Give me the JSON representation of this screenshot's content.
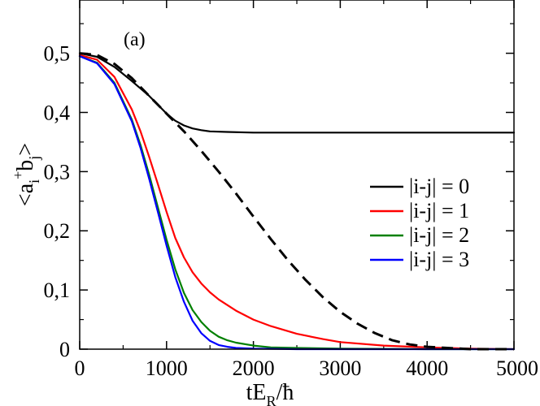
{
  "chart_data": {
    "type": "line",
    "panel_label": "(a)",
    "xlabel": {
      "main": "tE",
      "sub": "R",
      "rest": "/ħ"
    },
    "ylabel": {
      "open": "<a",
      "sub1": "i",
      "sup": "+",
      "mid": "b",
      "sub2": "j",
      "close": ">"
    },
    "xlim": [
      0,
      5000
    ],
    "ylim": [
      0,
      0.59
    ],
    "x_ticks": [
      0,
      1000,
      2000,
      3000,
      4000,
      5000
    ],
    "x_tick_labels": [
      "0",
      "1000",
      "2000",
      "3000",
      "4000",
      "5000"
    ],
    "y_ticks": [
      0,
      0.1,
      0.2,
      0.3,
      0.4,
      0.5
    ],
    "y_tick_labels": [
      "0",
      "0,1",
      "0,2",
      "0,3",
      "0,4",
      "0,5"
    ],
    "x_minor_step": 500,
    "y_minor_step": 0.05,
    "series": [
      {
        "name": "|i-j| = 0",
        "color": "#000000",
        "style": "solid",
        "x": [
          0,
          200,
          400,
          600,
          800,
          900,
          1000,
          1100,
          1200,
          1300,
          1400,
          1500,
          1700,
          2000,
          2500,
          3000,
          4000,
          5000
        ],
        "y": [
          0.5,
          0.494,
          0.477,
          0.453,
          0.428,
          0.413,
          0.398,
          0.386,
          0.378,
          0.373,
          0.37,
          0.368,
          0.367,
          0.366,
          0.366,
          0.366,
          0.366,
          0.366
        ]
      },
      {
        "name": "|i-j| = 1",
        "color": "#ff0000",
        "style": "solid",
        "x": [
          0,
          200,
          400,
          600,
          700,
          800,
          900,
          1000,
          1100,
          1200,
          1300,
          1400,
          1500,
          1600,
          1800,
          2000,
          2200,
          2500,
          2800,
          3000,
          3500,
          4000,
          4500,
          5000
        ],
        "y": [
          0.497,
          0.489,
          0.46,
          0.405,
          0.368,
          0.325,
          0.279,
          0.232,
          0.188,
          0.155,
          0.13,
          0.111,
          0.096,
          0.084,
          0.065,
          0.05,
          0.039,
          0.026,
          0.017,
          0.012,
          0.006,
          0.003,
          0.001,
          0.0
        ]
      },
      {
        "name": "|i-j| = 2",
        "color": "#008000",
        "style": "solid",
        "x": [
          0,
          200,
          400,
          600,
          700,
          800,
          900,
          1000,
          1100,
          1200,
          1300,
          1400,
          1500,
          1600,
          1700,
          1800,
          2000,
          2200,
          2500,
          3000,
          4000,
          5000
        ],
        "y": [
          0.495,
          0.484,
          0.45,
          0.388,
          0.345,
          0.295,
          0.24,
          0.185,
          0.135,
          0.095,
          0.066,
          0.046,
          0.031,
          0.021,
          0.015,
          0.011,
          0.006,
          0.003,
          0.002,
          0.001,
          0.0,
          0.0
        ]
      },
      {
        "name": "|i-j| = 3",
        "color": "#0000ff",
        "style": "solid",
        "x": [
          0,
          200,
          400,
          600,
          700,
          800,
          900,
          1000,
          1100,
          1200,
          1300,
          1400,
          1500,
          1600,
          1700,
          1800,
          2000,
          2500,
          3000,
          4000,
          5000
        ],
        "y": [
          0.495,
          0.483,
          0.448,
          0.385,
          0.34,
          0.288,
          0.232,
          0.175,
          0.122,
          0.08,
          0.048,
          0.027,
          0.014,
          0.007,
          0.004,
          0.002,
          0.001,
          0.0,
          0.0,
          0.0,
          0.0
        ]
      },
      {
        "name": "",
        "color": "#000000",
        "style": "dashed",
        "x": [
          0,
          200,
          400,
          600,
          800,
          1000,
          1200,
          1400,
          1600,
          1800,
          2000,
          2200,
          2400,
          2600,
          2800,
          3000,
          3200,
          3400,
          3600,
          3800,
          4000,
          4500,
          5000
        ],
        "y": [
          0.5,
          0.497,
          0.482,
          0.458,
          0.428,
          0.398,
          0.368,
          0.335,
          0.3,
          0.263,
          0.224,
          0.186,
          0.15,
          0.117,
          0.088,
          0.063,
          0.043,
          0.027,
          0.015,
          0.008,
          0.004,
          0.0,
          0.0
        ]
      }
    ],
    "legend": {
      "placement": "center-right",
      "entries": [
        "|i-j| = 0",
        "|i-j| = 1",
        "|i-j| = 2",
        "|i-j| = 3"
      ],
      "colors": [
        "#000000",
        "#ff0000",
        "#008000",
        "#0000ff"
      ]
    }
  }
}
